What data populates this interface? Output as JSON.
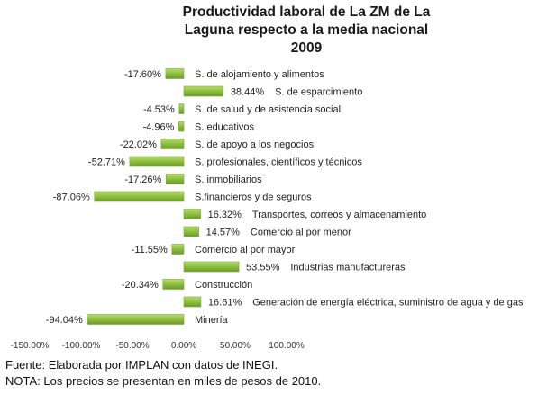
{
  "chart_data": {
    "type": "bar",
    "orientation": "horizontal",
    "title_lines": [
      "Productividad laboral de La ZM de La",
      "Laguna respecto a la media nacional",
      "2009"
    ],
    "categories": [
      "S. de alojamiento y alimentos",
      "S. de esparcimiento",
      "S. de salud y de asistencia social",
      "S. educativos",
      "S. de apoyo a los negocios",
      "S. profesionales, científicos y técnicos",
      "S. inmobiliarios",
      "S.financieros y de seguros",
      "Transportes, correos y almacenamiento",
      "Comercio al por menor",
      "Comercio al por mayor",
      "Industrias manufactureras",
      "Construcción",
      "Generación de energía eléctrica, suministro de agua y de gas",
      "Minería"
    ],
    "values": [
      -17.6,
      38.44,
      -4.53,
      -4.96,
      -22.02,
      -52.71,
      -17.26,
      -87.06,
      16.32,
      14.57,
      -11.55,
      53.55,
      -20.34,
      16.61,
      -94.04
    ],
    "value_labels": [
      "-17.60%",
      "38.44%",
      "-4.53%",
      "-4.96%",
      "-22.02%",
      "-52.71%",
      "-17.26%",
      "-87.06%",
      "16.32%",
      "14.57%",
      "-11.55%",
      "53.55%",
      "-20.34%",
      "16.61%",
      "-94.04%"
    ],
    "xlim": [
      -150,
      100
    ],
    "xticks": [
      -150,
      -100,
      -50,
      0,
      50,
      100
    ],
    "xtick_labels": [
      "-150.00%",
      "-100.00%",
      "-50.00%",
      "0.00%",
      "50.00%",
      "100.00%"
    ],
    "grid": false,
    "legend": "none",
    "bar_color": "#8dbf3e"
  },
  "notes": {
    "source": "Fuente: Elaborada por IMPLAN con datos de INEGI.",
    "prices": "NOTA: Los precios se presentan en miles de pesos de 2010."
  }
}
